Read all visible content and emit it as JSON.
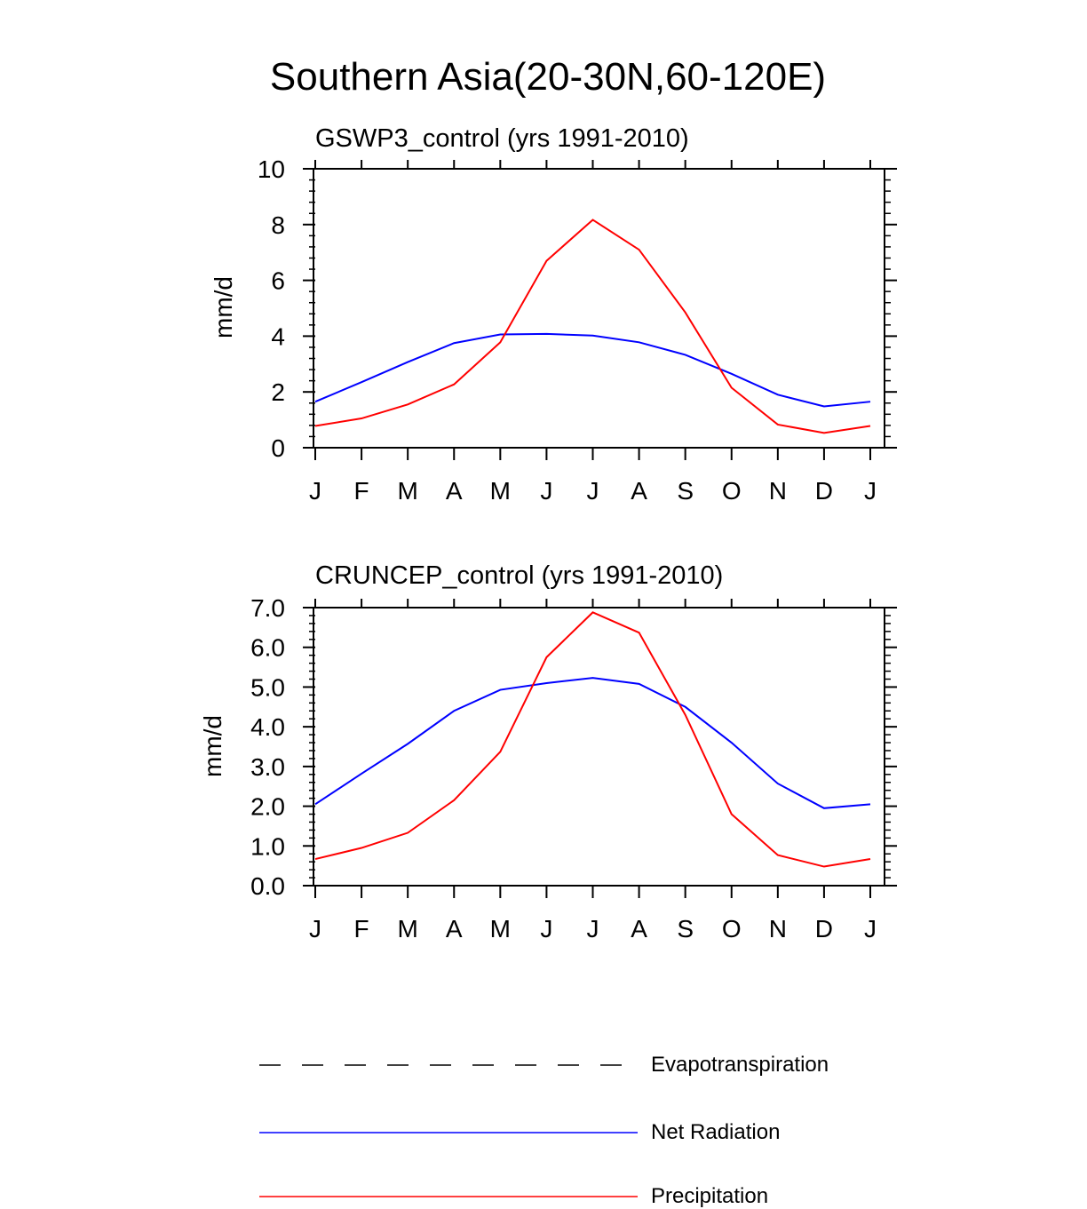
{
  "title": "Southern Asia(20-30N,60-120E)",
  "chart_data": [
    {
      "type": "line",
      "title": "GSWP3_control (yrs 1991-2010)",
      "ylabel": "mm/d",
      "xlabel": "",
      "categories": [
        "J",
        "F",
        "M",
        "A",
        "M",
        "J",
        "J",
        "A",
        "S",
        "O",
        "N",
        "D",
        "J"
      ],
      "ylim": [
        0,
        10
      ],
      "yticks": [
        "0",
        "2",
        "4",
        "6",
        "8",
        "10"
      ],
      "yticks_values": [
        0,
        2,
        4,
        6,
        8,
        10
      ],
      "series": [
        {
          "name": "Net Radiation",
          "color": "#0000ff",
          "values": [
            1.65,
            2.35,
            3.07,
            3.75,
            4.06,
            4.08,
            4.02,
            3.78,
            3.33,
            2.65,
            1.9,
            1.48,
            1.65
          ]
        },
        {
          "name": "Precipitation",
          "color": "#ff0000",
          "values": [
            0.78,
            1.05,
            1.55,
            2.27,
            3.78,
            6.7,
            8.17,
            7.1,
            4.85,
            2.15,
            0.83,
            0.53,
            0.78
          ]
        }
      ]
    },
    {
      "type": "line",
      "title": "CRUNCEP_control (yrs 1991-2010)",
      "ylabel": "mm/d",
      "xlabel": "",
      "categories": [
        "J",
        "F",
        "M",
        "A",
        "M",
        "J",
        "J",
        "A",
        "S",
        "O",
        "N",
        "D",
        "J"
      ],
      "ylim": [
        0,
        7
      ],
      "yticks": [
        "0.0",
        "1.0",
        "2.0",
        "3.0",
        "4.0",
        "5.0",
        "6.0",
        "7.0"
      ],
      "yticks_values": [
        0,
        1,
        2,
        3,
        4,
        5,
        6,
        7
      ],
      "series": [
        {
          "name": "Net Radiation",
          "color": "#0000ff",
          "values": [
            2.05,
            2.82,
            3.57,
            4.4,
            4.93,
            5.1,
            5.23,
            5.08,
            4.5,
            3.6,
            2.57,
            1.95,
            2.05
          ]
        },
        {
          "name": "Precipitation",
          "color": "#ff0000",
          "values": [
            0.67,
            0.95,
            1.33,
            2.15,
            3.37,
            5.75,
            6.88,
            6.37,
            4.3,
            1.8,
            0.77,
            0.48,
            0.67
          ]
        }
      ]
    }
  ],
  "legend": [
    {
      "name": "Evapotranspiration",
      "color": "#000000",
      "style": "dashed"
    },
    {
      "name": "Net Radiation",
      "color": "#0000ff",
      "style": "solid"
    },
    {
      "name": "Precipitation",
      "color": "#ff0000",
      "style": "solid"
    }
  ]
}
